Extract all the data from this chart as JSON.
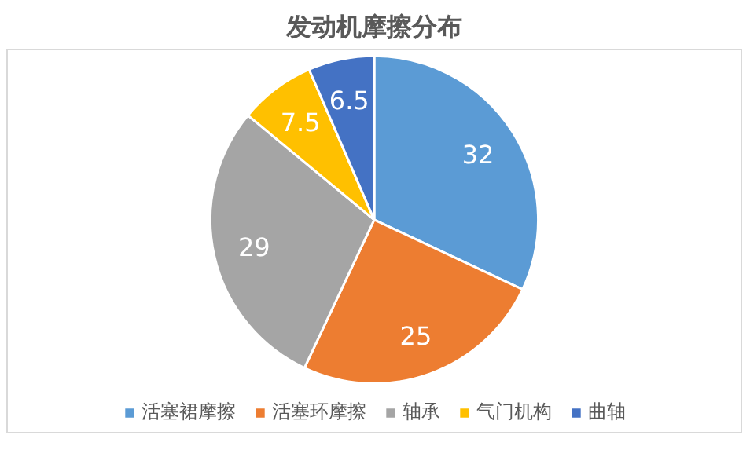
{
  "chart_data": {
    "type": "pie",
    "title": "发动机摩擦分布",
    "categories": [
      "活塞裙摩擦",
      "活塞环摩擦",
      "轴承",
      "气门机构",
      "曲轴"
    ],
    "values": [
      32,
      25,
      29,
      7.5,
      6.5
    ],
    "colors": [
      "#5b9bd5",
      "#ed7d31",
      "#a5a5a5",
      "#ffc000",
      "#4472c4"
    ],
    "data_labels": true,
    "legend": "bottom"
  }
}
